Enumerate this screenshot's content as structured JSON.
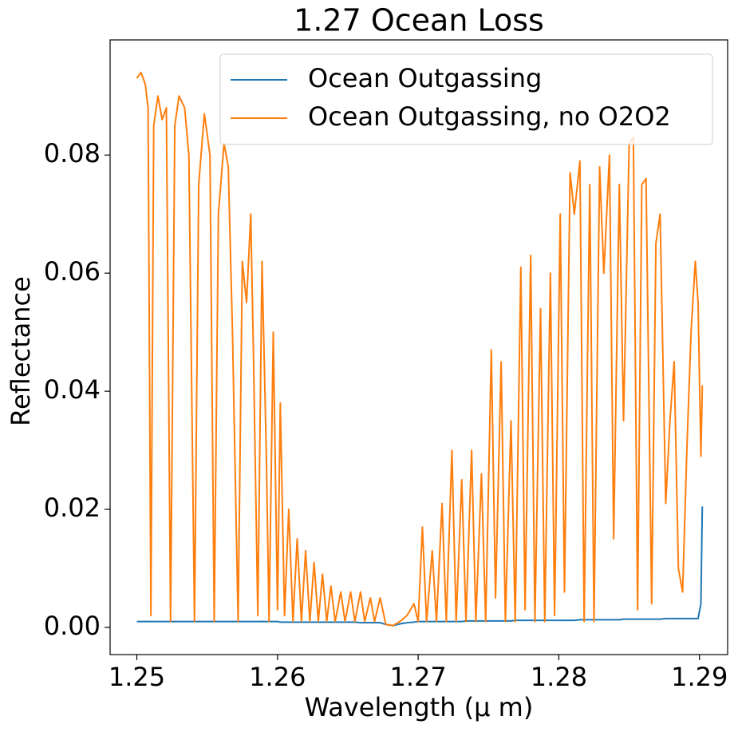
{
  "chart_data": {
    "type": "line",
    "title": "1.27 Ocean Loss",
    "x_label": "Wavelength (μ m)",
    "y_label": "Reflectance",
    "x": [
      1.25,
      1.2503,
      1.2506,
      1.2508,
      1.251,
      1.2512,
      1.2515,
      1.2518,
      1.2521,
      1.2524,
      1.2527,
      1.253,
      1.2534,
      1.2537,
      1.2541,
      1.2544,
      1.2548,
      1.2552,
      1.2555,
      1.2558,
      1.2562,
      1.2565,
      1.2568,
      1.2572,
      1.2575,
      1.2578,
      1.2581,
      1.2583,
      1.2586,
      1.2589,
      1.2592,
      1.2594,
      1.2597,
      1.26,
      1.2602,
      1.2605,
      1.2608,
      1.2611,
      1.2614,
      1.2617,
      1.262,
      1.2623,
      1.2626,
      1.2629,
      1.2632,
      1.2635,
      1.2638,
      1.2641,
      1.2645,
      1.2648,
      1.2652,
      1.2655,
      1.2659,
      1.2662,
      1.2666,
      1.2669,
      1.2673,
      1.2677,
      1.2682,
      1.2687,
      1.2692,
      1.2697,
      1.27,
      1.2703,
      1.2706,
      1.271,
      1.2713,
      1.2717,
      1.272,
      1.2724,
      1.2727,
      1.2731,
      1.2734,
      1.2738,
      1.2741,
      1.2745,
      1.2748,
      1.2752,
      1.2755,
      1.2759,
      1.2762,
      1.2766,
      1.2769,
      1.2773,
      1.2776,
      1.278,
      1.2783,
      1.2787,
      1.279,
      1.2794,
      1.2797,
      1.2801,
      1.2804,
      1.2808,
      1.2811,
      1.2815,
      1.2818,
      1.2822,
      1.2825,
      1.2829,
      1.2832,
      1.2836,
      1.2839,
      1.2843,
      1.2846,
      1.285,
      1.2853,
      1.2856,
      1.2859,
      1.2862,
      1.2866,
      1.2869,
      1.2872,
      1.2876,
      1.2879,
      1.2882,
      1.2885,
      1.2888,
      1.2891,
      1.2894,
      1.2897,
      1.2899,
      1.2901,
      1.2902
    ],
    "series": [
      {
        "name": "Ocean Outgassing",
        "color": "#1f77b4",
        "values": [
          0.001,
          0.001,
          0.001,
          0.001,
          0.001,
          0.001,
          0.001,
          0.001,
          0.001,
          0.001,
          0.001,
          0.001,
          0.001,
          0.001,
          0.001,
          0.001,
          0.001,
          0.001,
          0.001,
          0.001,
          0.001,
          0.001,
          0.001,
          0.001,
          0.001,
          0.001,
          0.001,
          0.001,
          0.001,
          0.001,
          0.001,
          0.001,
          0.001,
          0.001,
          0.0009,
          0.0009,
          0.0009,
          0.0009,
          0.0009,
          0.0009,
          0.0009,
          0.0009,
          0.0009,
          0.0009,
          0.0009,
          0.0009,
          0.0009,
          0.0009,
          0.0009,
          0.0009,
          0.0009,
          0.0009,
          0.0008,
          0.0008,
          0.0008,
          0.0008,
          0.0008,
          0.0005,
          0.0003,
          0.0006,
          0.0008,
          0.0009,
          0.001,
          0.001,
          0.001,
          0.001,
          0.001,
          0.001,
          0.001,
          0.001,
          0.001,
          0.001,
          0.0011,
          0.0011,
          0.0011,
          0.0011,
          0.0011,
          0.0011,
          0.0011,
          0.0011,
          0.0011,
          0.0011,
          0.0012,
          0.0012,
          0.0012,
          0.0012,
          0.0012,
          0.0012,
          0.0012,
          0.0012,
          0.0012,
          0.0012,
          0.0012,
          0.0012,
          0.0012,
          0.0013,
          0.0013,
          0.0013,
          0.0013,
          0.0013,
          0.0013,
          0.0013,
          0.0013,
          0.0013,
          0.0014,
          0.0014,
          0.0014,
          0.0014,
          0.0014,
          0.0014,
          0.0014,
          0.0014,
          0.0014,
          0.0015,
          0.0015,
          0.0015,
          0.0015,
          0.0015,
          0.0015,
          0.0015,
          0.0015,
          0.0015,
          0.004,
          0.0205
        ]
      },
      {
        "name": "Ocean Outgassing, no O2O2",
        "color": "#ff7f0e",
        "values": [
          0.093,
          0.094,
          0.092,
          0.088,
          0.002,
          0.085,
          0.09,
          0.086,
          0.088,
          0.001,
          0.085,
          0.09,
          0.088,
          0.08,
          0.001,
          0.075,
          0.087,
          0.08,
          0.001,
          0.07,
          0.082,
          0.078,
          0.05,
          0.001,
          0.062,
          0.055,
          0.07,
          0.045,
          0.002,
          0.062,
          0.03,
          0.001,
          0.05,
          0.003,
          0.038,
          0.002,
          0.02,
          0.001,
          0.015,
          0.001,
          0.013,
          0.001,
          0.011,
          0.001,
          0.009,
          0.001,
          0.007,
          0.001,
          0.006,
          0.001,
          0.006,
          0.001,
          0.006,
          0.001,
          0.005,
          0.001,
          0.005,
          0.0005,
          0.0003,
          0.001,
          0.002,
          0.004,
          0.001,
          0.017,
          0.001,
          0.013,
          0.001,
          0.021,
          0.001,
          0.03,
          0.001,
          0.025,
          0.001,
          0.03,
          0.001,
          0.026,
          0.001,
          0.047,
          0.005,
          0.045,
          0.001,
          0.035,
          0.001,
          0.061,
          0.003,
          0.063,
          0.001,
          0.054,
          0.001,
          0.06,
          0.002,
          0.07,
          0.006,
          0.077,
          0.07,
          0.079,
          0.001,
          0.075,
          0.001,
          0.078,
          0.06,
          0.08,
          0.015,
          0.075,
          0.035,
          0.082,
          0.083,
          0.003,
          0.075,
          0.076,
          0.004,
          0.065,
          0.07,
          0.021,
          0.035,
          0.045,
          0.01,
          0.006,
          0.03,
          0.05,
          0.062,
          0.055,
          0.029,
          0.041
        ]
      }
    ],
    "xlim": [
      1.2481,
      1.292
    ],
    "xticks": [
      1.25,
      1.26,
      1.27,
      1.28,
      1.29
    ],
    "ylim": [
      -0.0046,
      0.0995
    ],
    "yticks": [
      {
        "value": 0,
        "label": "0.00"
      },
      0.02,
      0.04,
      0.06,
      0.08
    ],
    "grid": false,
    "legend": "upper right"
  }
}
